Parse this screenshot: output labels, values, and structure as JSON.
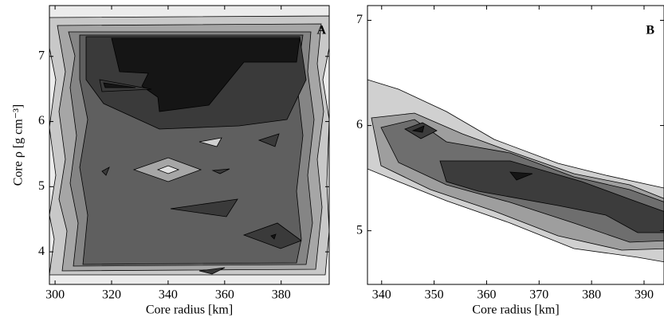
{
  "chart_data": [
    {
      "type": "contour",
      "panel_label": "A",
      "xlabel": "Core radius [km]",
      "ylabel": "Core ρ [g cm⁻³]",
      "xlim": [
        298,
        397
      ],
      "xticks": [
        300,
        320,
        340,
        360,
        380
      ],
      "ylim": [
        3.5,
        7.78
      ],
      "yticks": [
        4,
        5,
        6,
        7
      ]
    },
    {
      "type": "contour",
      "panel_label": "B",
      "xlabel": "Core radius [km]",
      "xlim": [
        337.3,
        393.8
      ],
      "xticks": [
        340,
        350,
        360,
        370,
        380,
        390
      ],
      "ylim": [
        4.49,
        7.14
      ],
      "yticks": [
        5,
        6,
        7
      ]
    }
  ]
}
